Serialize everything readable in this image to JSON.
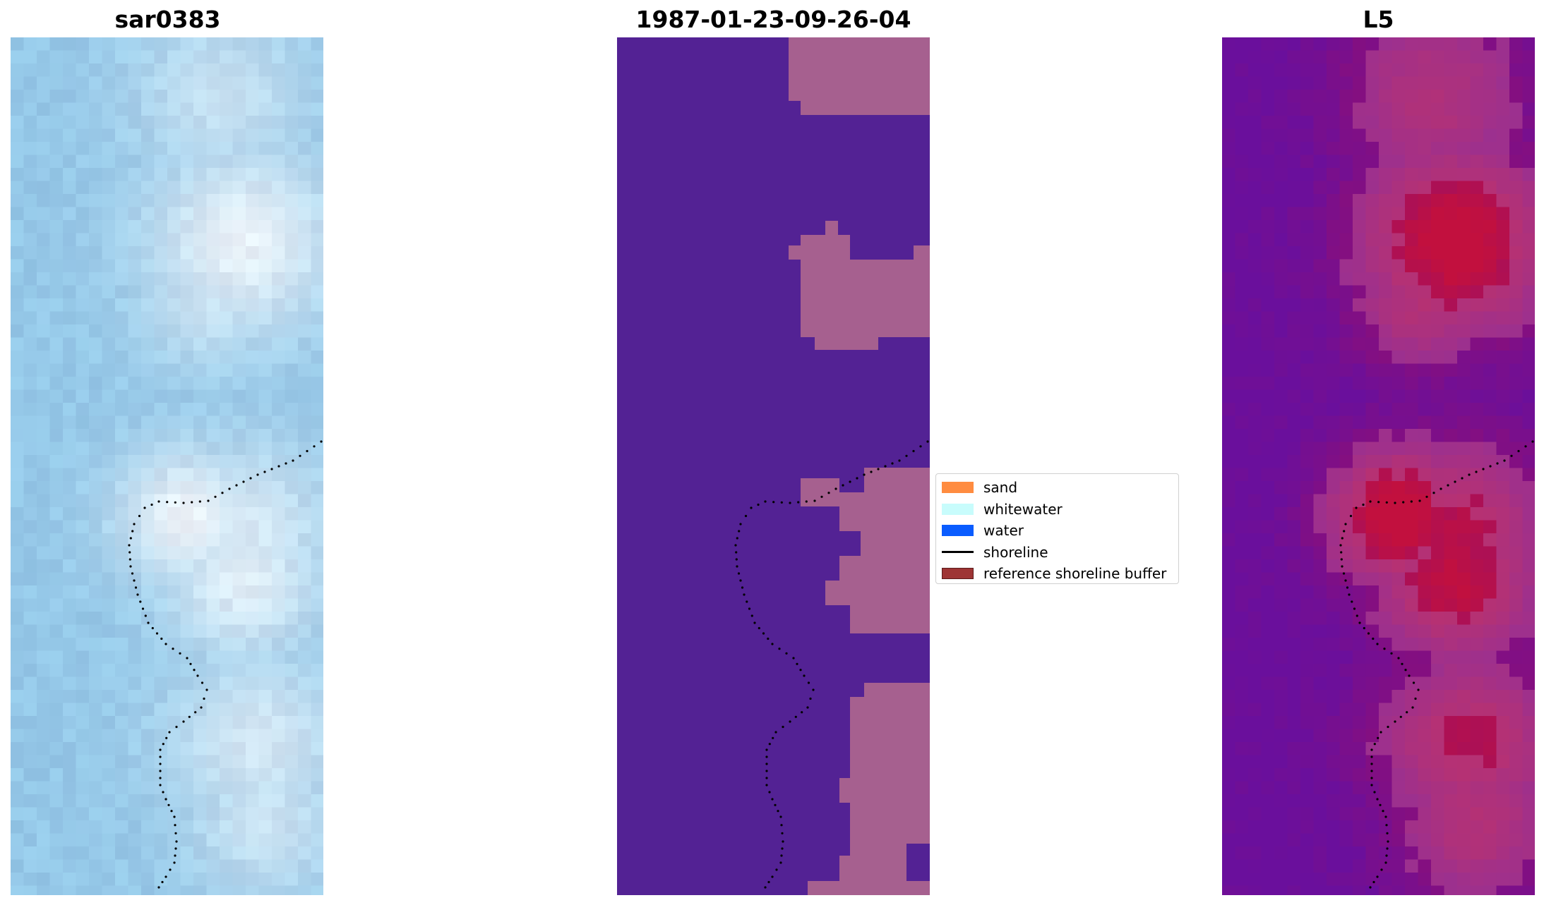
{
  "panels": [
    {
      "title": "sar0383",
      "kind": "rgb-image"
    },
    {
      "title": "1987-01-23-09-26-04",
      "kind": "classification"
    },
    {
      "title": "L5",
      "kind": "index-image"
    }
  ],
  "legend": {
    "placement": "between middle and right panels",
    "items": [
      {
        "label": "sand",
        "swatch": "#ff8c40",
        "type": "patch"
      },
      {
        "label": "whitewater",
        "swatch": "#c8fcfc",
        "type": "patch"
      },
      {
        "label": "water",
        "swatch": "#0a5cff",
        "type": "patch"
      },
      {
        "label": "shoreline",
        "swatch": "#000000",
        "type": "line"
      },
      {
        "label": "reference shoreline buffer",
        "swatch": "#9e3434",
        "type": "patch"
      }
    ]
  },
  "colors": {
    "rgb_base": "#95c8e8",
    "rgb_white": "#f2f6fa",
    "class_background": "#532294",
    "class_overlay": "#a6608f",
    "index_low": "#6a0f9c",
    "index_high": "#c2103e",
    "shoreline_dots": "#000000"
  }
}
